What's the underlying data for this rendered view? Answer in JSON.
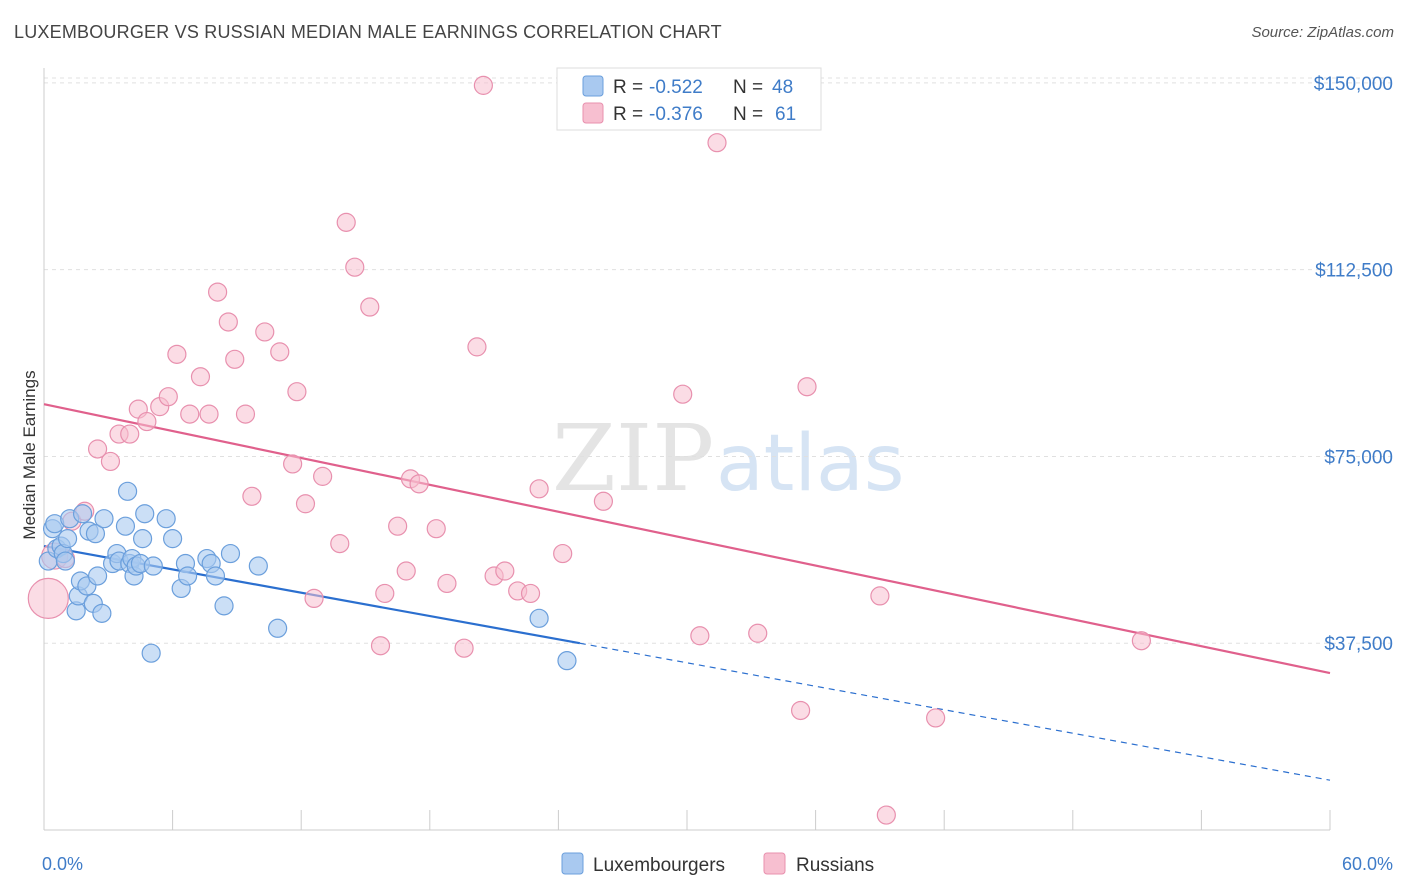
{
  "title": "LUXEMBOURGER VS RUSSIAN MEDIAN MALE EARNINGS CORRELATION CHART",
  "source": "Source: ZipAtlas.com",
  "watermark": {
    "zip": "ZIP",
    "atlas": "atlas"
  },
  "colors": {
    "blue_fill": "#a9c9f0",
    "blue_stroke": "#6b9fdc",
    "blue_line": "#2b6fcf",
    "pink_fill": "#f7bfd0",
    "pink_stroke": "#e890ae",
    "pink_line": "#e0608c",
    "axis_label": "#3f7cc8"
  },
  "legend": {
    "rows": [
      {
        "r_label": "R =",
        "r_value": "-0.522",
        "n_label": "N =",
        "n_value": "48"
      },
      {
        "r_label": "R =",
        "r_value": "-0.376",
        "n_label": "N =",
        "n_value": "61"
      }
    ]
  },
  "bottom_legend": [
    "Luxembourgers",
    "Russians"
  ],
  "chart_data": {
    "type": "scatter",
    "title": "LUXEMBOURGER VS RUSSIAN MEDIAN MALE EARNINGS CORRELATION CHART",
    "xlabel": "",
    "ylabel": "Median Male Earnings",
    "xlim": [
      0,
      60
    ],
    "ylim": [
      0,
      155000
    ],
    "x_tick_labels": [
      "0.0%",
      "60.0%"
    ],
    "y_ticks": [
      37500,
      75000,
      112500,
      150000
    ],
    "y_tick_labels": [
      "$37,500",
      "$75,000",
      "$112,500",
      "$150,000"
    ],
    "grid": true,
    "legend_position": "top-center",
    "series": [
      {
        "name": "Luxembourgers",
        "trend": {
          "x0": 0,
          "y0": 57000,
          "x1": 25,
          "y1": 37500,
          "dashed_to_x": 60,
          "dashed_to_y": 10000
        },
        "points": [
          [
            0.2,
            54000
          ],
          [
            0.4,
            60500
          ],
          [
            0.5,
            61500
          ],
          [
            0.6,
            56500
          ],
          [
            0.8,
            57000
          ],
          [
            0.9,
            55500
          ],
          [
            1.0,
            54000
          ],
          [
            1.1,
            58500
          ],
          [
            1.2,
            62500
          ],
          [
            1.5,
            44000
          ],
          [
            1.6,
            47000
          ],
          [
            1.7,
            50000
          ],
          [
            1.8,
            63500
          ],
          [
            2.0,
            49000
          ],
          [
            2.1,
            60000
          ],
          [
            2.3,
            45500
          ],
          [
            2.4,
            59500
          ],
          [
            2.5,
            51000
          ],
          [
            2.7,
            43500
          ],
          [
            2.8,
            62500
          ],
          [
            3.2,
            53500
          ],
          [
            3.4,
            55500
          ],
          [
            3.5,
            54000
          ],
          [
            3.8,
            61000
          ],
          [
            3.9,
            68000
          ],
          [
            4.0,
            53500
          ],
          [
            4.1,
            54500
          ],
          [
            4.2,
            51000
          ],
          [
            4.3,
            53000
          ],
          [
            4.5,
            53500
          ],
          [
            4.6,
            58500
          ],
          [
            4.7,
            63500
          ],
          [
            5.0,
            35500
          ],
          [
            5.1,
            53000
          ],
          [
            5.7,
            62500
          ],
          [
            6.0,
            58500
          ],
          [
            6.4,
            48500
          ],
          [
            6.6,
            53500
          ],
          [
            6.7,
            51000
          ],
          [
            7.6,
            54500
          ],
          [
            7.8,
            53500
          ],
          [
            8.0,
            51000
          ],
          [
            8.4,
            45000
          ],
          [
            8.7,
            55500
          ],
          [
            10.0,
            53000
          ],
          [
            10.9,
            40500
          ],
          [
            23.1,
            42500
          ],
          [
            24.4,
            34000
          ]
        ]
      },
      {
        "name": "Russians",
        "trend": {
          "x0": 0,
          "y0": 85500,
          "x1": 60,
          "y1": 31500
        },
        "points": [
          [
            0.2,
            46500
          ],
          [
            0.5,
            55000
          ],
          [
            1.0,
            54500
          ],
          [
            1.3,
            62000
          ],
          [
            1.9,
            64000
          ],
          [
            2.5,
            76500
          ],
          [
            3.1,
            74000
          ],
          [
            3.5,
            79500
          ],
          [
            4.0,
            79500
          ],
          [
            4.4,
            84500
          ],
          [
            4.8,
            82000
          ],
          [
            5.4,
            85000
          ],
          [
            5.8,
            87000
          ],
          [
            6.2,
            95500
          ],
          [
            6.8,
            83500
          ],
          [
            7.3,
            91000
          ],
          [
            7.7,
            83500
          ],
          [
            8.1,
            108000
          ],
          [
            8.6,
            102000
          ],
          [
            8.9,
            94500
          ],
          [
            9.4,
            83500
          ],
          [
            9.7,
            67000
          ],
          [
            10.3,
            100000
          ],
          [
            11.0,
            96000
          ],
          [
            11.6,
            73500
          ],
          [
            11.8,
            88000
          ],
          [
            12.2,
            65500
          ],
          [
            12.6,
            46500
          ],
          [
            13.0,
            71000
          ],
          [
            13.8,
            57500
          ],
          [
            14.1,
            122000
          ],
          [
            14.5,
            113000
          ],
          [
            15.2,
            105000
          ],
          [
            15.7,
            37000
          ],
          [
            15.9,
            47500
          ],
          [
            16.5,
            61000
          ],
          [
            16.9,
            52000
          ],
          [
            17.1,
            70500
          ],
          [
            17.5,
            69500
          ],
          [
            18.3,
            60500
          ],
          [
            18.8,
            49500
          ],
          [
            19.6,
            36500
          ],
          [
            20.2,
            97000
          ],
          [
            20.5,
            149500
          ],
          [
            21.0,
            51000
          ],
          [
            21.5,
            52000
          ],
          [
            22.1,
            48000
          ],
          [
            22.7,
            47500
          ],
          [
            23.1,
            68500
          ],
          [
            24.2,
            55500
          ],
          [
            26.1,
            66000
          ],
          [
            29.8,
            87500
          ],
          [
            30.6,
            39000
          ],
          [
            31.4,
            138000
          ],
          [
            33.3,
            39500
          ],
          [
            35.3,
            24000
          ],
          [
            35.6,
            89000
          ],
          [
            39.0,
            47000
          ],
          [
            39.3,
            3000
          ],
          [
            41.6,
            22500
          ],
          [
            51.2,
            38000
          ]
        ]
      }
    ]
  }
}
